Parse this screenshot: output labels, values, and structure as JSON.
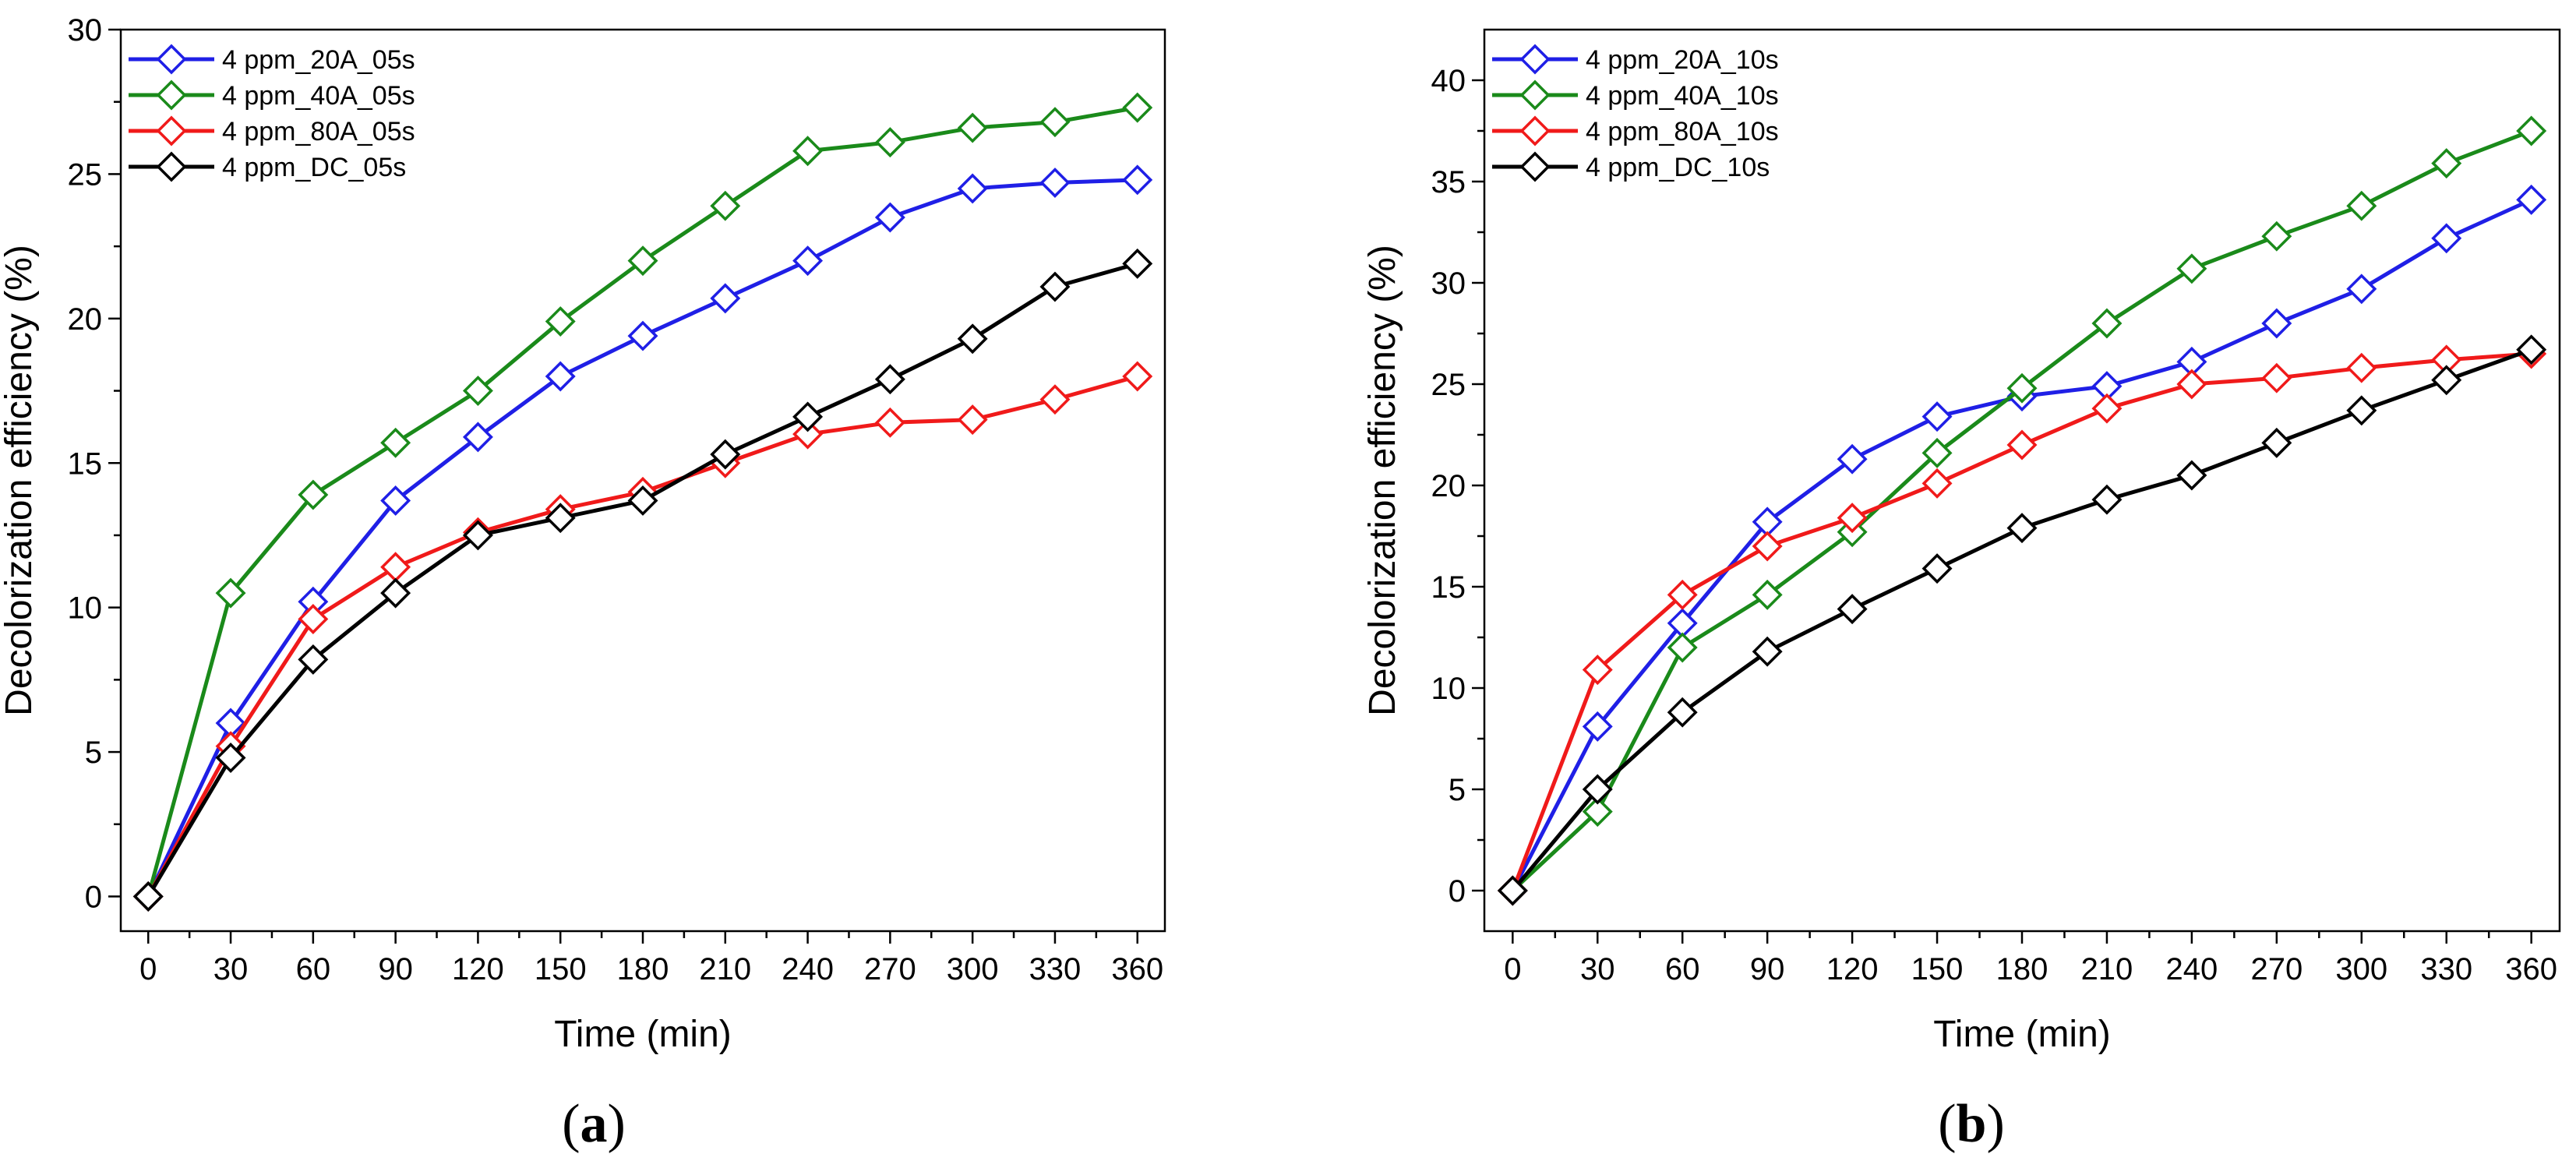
{
  "colors": {
    "20A": "#1f1fe6",
    "40A": "#1a8a1a",
    "80A": "#f01a1a",
    "DC": "#000000"
  },
  "chart_data": [
    {
      "type": "line",
      "panel_label": "a",
      "title": "",
      "xlabel": "Time (min)",
      "ylabel": "Decolorization efficiency (%)",
      "xlim": [
        -10,
        370
      ],
      "ylim": [
        -1.2,
        30
      ],
      "x_ticks": [
        0,
        30,
        60,
        90,
        120,
        150,
        180,
        210,
        240,
        270,
        300,
        330,
        360
      ],
      "y_ticks": [
        0,
        5,
        10,
        15,
        20,
        25,
        30
      ],
      "legend_position": "top-left",
      "x": [
        0,
        30,
        60,
        90,
        120,
        150,
        180,
        210,
        240,
        270,
        300,
        330,
        360
      ],
      "series": [
        {
          "name": "4 ppm_20A_05s",
          "color_key": "20A",
          "values": [
            0,
            6.0,
            10.2,
            13.7,
            15.9,
            18.0,
            19.4,
            20.7,
            22.0,
            23.5,
            24.5,
            24.7,
            24.8
          ]
        },
        {
          "name": "4 ppm_40A_05s",
          "color_key": "40A",
          "values": [
            0,
            10.5,
            13.9,
            15.7,
            17.5,
            19.9,
            22.0,
            23.9,
            25.8,
            26.1,
            26.6,
            26.8,
            27.3
          ]
        },
        {
          "name": "4 ppm_80A_05s",
          "color_key": "80A",
          "values": [
            0,
            5.2,
            9.6,
            11.4,
            12.6,
            13.4,
            14.0,
            15.0,
            16.0,
            16.4,
            16.5,
            17.2,
            18.0
          ]
        },
        {
          "name": "4 ppm_DC_05s",
          "color_key": "DC",
          "values": [
            0,
            4.8,
            8.2,
            10.5,
            12.5,
            13.1,
            13.7,
            15.3,
            16.6,
            17.9,
            19.3,
            21.1,
            21.9
          ]
        }
      ]
    },
    {
      "type": "line",
      "panel_label": "b",
      "title": "",
      "xlabel": "Time (min)",
      "ylabel": "Decolorization efficiency (%)",
      "xlim": [
        -10,
        370
      ],
      "ylim": [
        -2,
        42.5
      ],
      "x_ticks": [
        0,
        30,
        60,
        90,
        120,
        150,
        180,
        210,
        240,
        270,
        300,
        330,
        360
      ],
      "y_ticks": [
        0,
        5,
        10,
        15,
        20,
        25,
        30,
        35,
        40
      ],
      "legend_position": "top-left",
      "x": [
        0,
        30,
        60,
        90,
        120,
        150,
        180,
        210,
        240,
        270,
        300,
        330,
        360
      ],
      "series": [
        {
          "name": "4 ppm_20A_10s",
          "color_key": "20A",
          "values": [
            0,
            8.1,
            13.2,
            18.2,
            21.3,
            23.4,
            24.4,
            24.9,
            26.1,
            28.0,
            29.7,
            32.2,
            34.1
          ]
        },
        {
          "name": "4 ppm_40A_10s",
          "color_key": "40A",
          "values": [
            0,
            3.9,
            12.0,
            14.6,
            17.7,
            21.6,
            24.8,
            28.0,
            30.7,
            32.3,
            33.8,
            35.9,
            37.5
          ]
        },
        {
          "name": "4 ppm_80A_10s",
          "color_key": "80A",
          "values": [
            0,
            10.9,
            14.6,
            17.0,
            18.4,
            20.1,
            22.0,
            23.8,
            25.0,
            25.3,
            25.8,
            26.2,
            26.5
          ]
        },
        {
          "name": "4 ppm_DC_10s",
          "color_key": "DC",
          "values": [
            0,
            5.0,
            8.8,
            11.8,
            13.9,
            15.9,
            17.9,
            19.3,
            20.5,
            22.1,
            23.7,
            25.2,
            26.7
          ]
        }
      ]
    }
  ]
}
